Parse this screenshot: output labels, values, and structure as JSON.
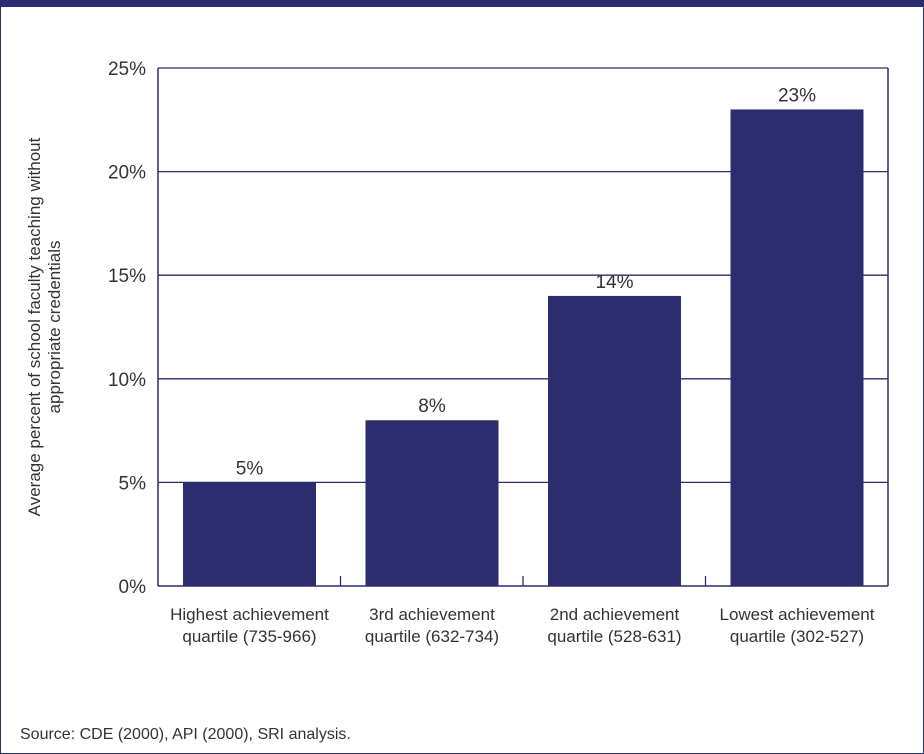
{
  "chart_data": {
    "type": "bar",
    "categories": [
      [
        "Highest achievement",
        "quartile (735-966)"
      ],
      [
        "3rd achievement",
        "quartile (632-734)"
      ],
      [
        "2nd achievement",
        "quartile (528-631)"
      ],
      [
        "Lowest achievement",
        "quartile (302-527)"
      ]
    ],
    "values": [
      5,
      8,
      14,
      23
    ],
    "data_labels": [
      "5%",
      "8%",
      "14%",
      "23%"
    ],
    "ylabel": [
      "Average percent of school faculty teaching without",
      "appropriate credentials"
    ],
    "ylim": [
      0,
      25
    ],
    "yticks": [
      0,
      5,
      10,
      15,
      20,
      25
    ],
    "ytick_labels": [
      "0%",
      "5%",
      "10%",
      "15%",
      "20%",
      "25%"
    ],
    "grid": true,
    "bar_color": "#2b2d6e"
  },
  "source": "Source: CDE (2000), API (2000), SRI analysis."
}
